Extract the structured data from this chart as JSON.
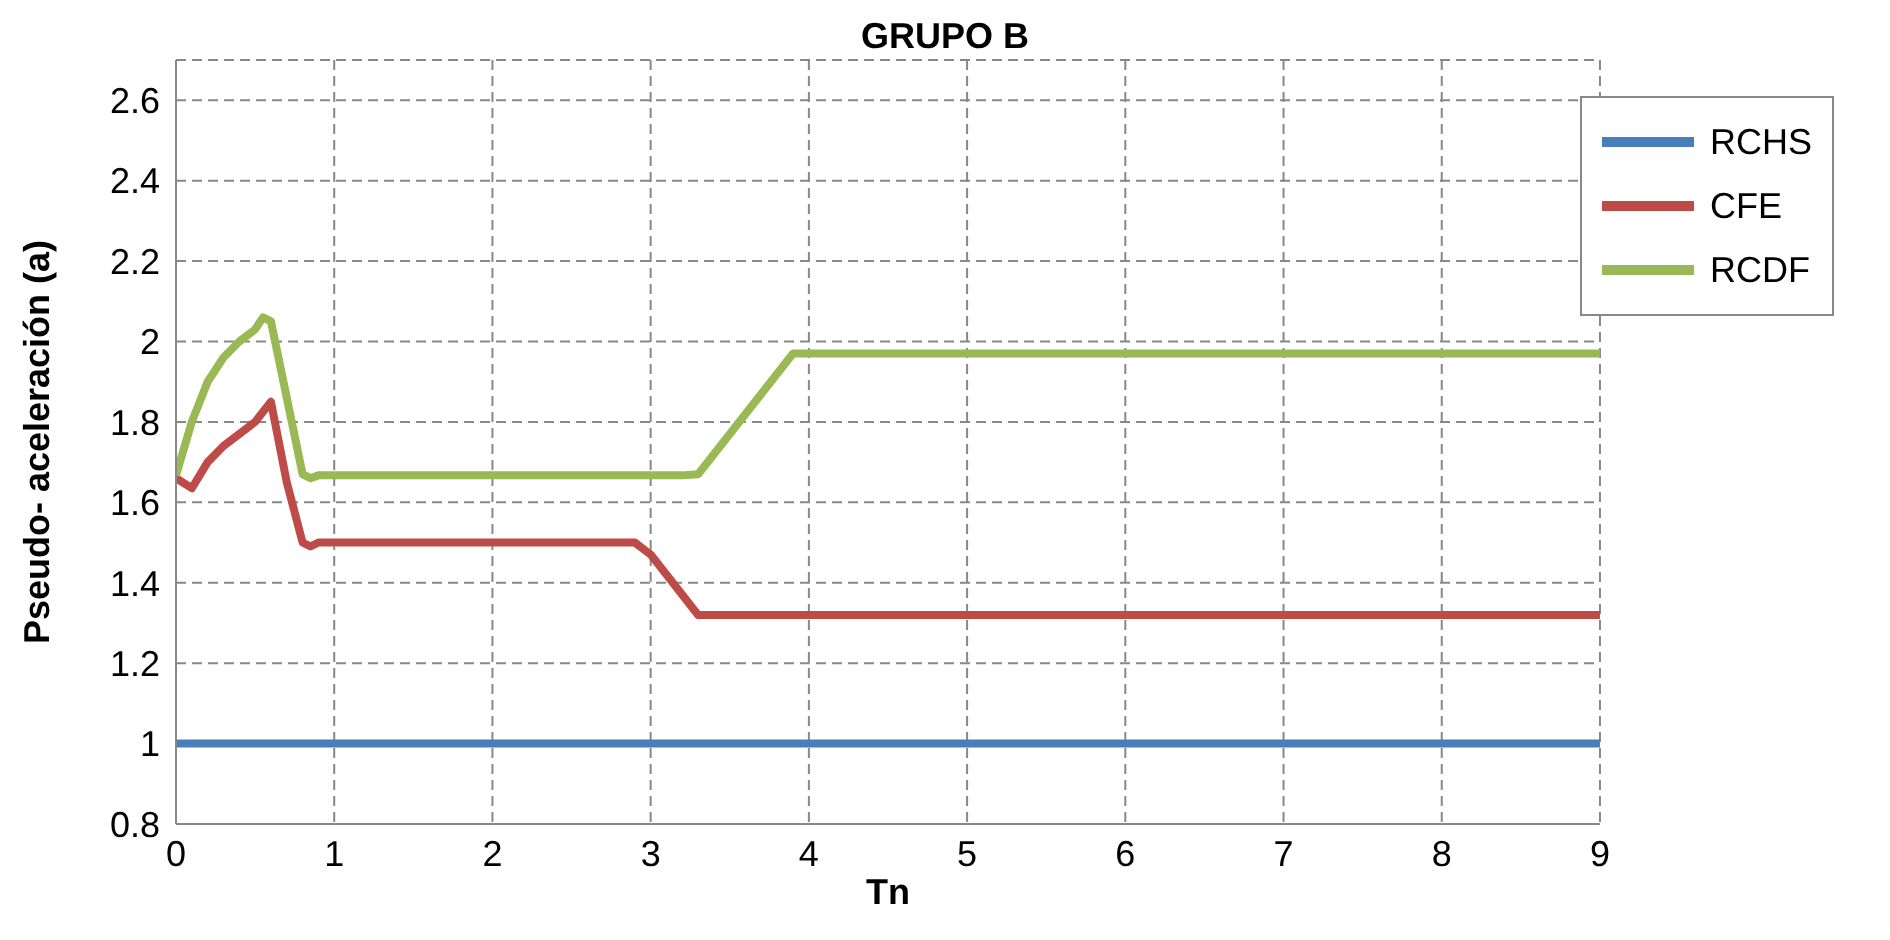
{
  "chart_data": {
    "type": "line",
    "title": "GRUPO B",
    "xlabel": "Tn",
    "ylabel": "Pseudo- aceleración (a)",
    "series": [
      {
        "name": "RCHS",
        "color": "#4a7ebb",
        "x": [
          0,
          9
        ],
        "values": [
          1,
          1
        ]
      },
      {
        "name": "CFE",
        "color": "#be4b48",
        "x": [
          0,
          0.1,
          0.2,
          0.3,
          0.4,
          0.5,
          0.6,
          0.7,
          0.8,
          0.85,
          0.9,
          2.9,
          3,
          3.3,
          9
        ],
        "values": [
          1.66,
          1.635,
          1.7,
          1.74,
          1.77,
          1.8,
          1.85,
          1.65,
          1.5,
          1.49,
          1.5,
          1.5,
          1.47,
          1.32,
          1.32
        ]
      },
      {
        "name": "RCDF",
        "color": "#98b954",
        "x": [
          0,
          0.1,
          0.2,
          0.3,
          0.4,
          0.5,
          0.55,
          0.6,
          0.8,
          0.85,
          0.9,
          3.2,
          3.3,
          3.9,
          9
        ],
        "values": [
          1.667,
          1.8,
          1.9,
          1.96,
          2,
          2.03,
          2.06,
          2.05,
          1.67,
          1.66,
          1.667,
          1.667,
          1.67,
          1.97,
          1.97
        ]
      }
    ],
    "xlim": [
      0,
      9
    ],
    "xticks": [
      0,
      1,
      2,
      3,
      4,
      5,
      6,
      7,
      8,
      9
    ],
    "ylim": [
      0.8,
      2.7
    ],
    "yticks": [
      0.8,
      1,
      1.2,
      1.4,
      1.6,
      1.8,
      2,
      2.2,
      2.4,
      2.6
    ],
    "grid": true,
    "legend": "top right",
    "marker": "none",
    "line_style": "solid"
  }
}
